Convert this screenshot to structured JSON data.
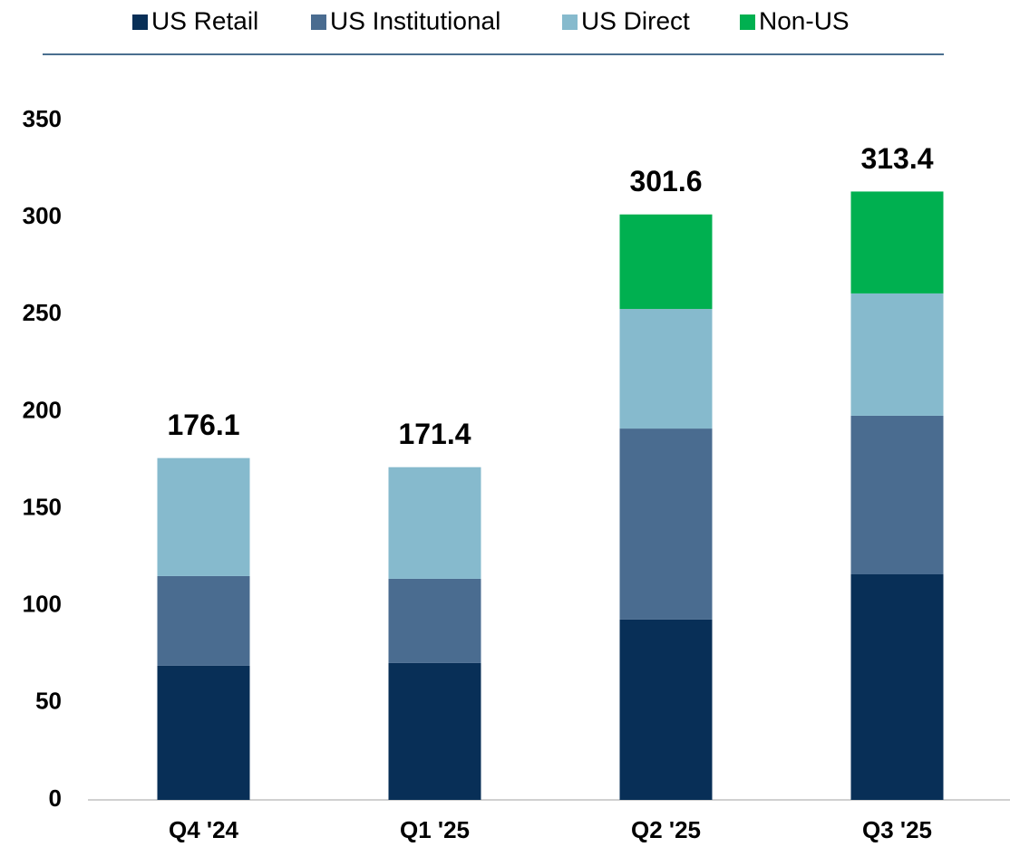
{
  "chart_data": {
    "type": "stacked_bar",
    "categories": [
      "Q4 '24",
      "Q1 '25",
      "Q2 '25",
      "Q3 '25"
    ],
    "series": [
      {
        "name": "US Retail",
        "color": "#082f57",
        "values": [
          69.1,
          70.5,
          92.9,
          116.2
        ]
      },
      {
        "name": "US Institutional",
        "color": "#4a6c90",
        "values": [
          46.2,
          43.4,
          98.4,
          81.7
        ]
      },
      {
        "name": "US Direct",
        "color": "#86bacd",
        "values": [
          60.8,
          57.5,
          61.6,
          63.0
        ]
      },
      {
        "name": "Non-US",
        "color": "#00b050",
        "values": [
          null,
          null,
          48.7,
          52.5
        ]
      }
    ],
    "totals": [
      176.1,
      171.4,
      301.6,
      313.4
    ],
    "ylim": [
      0,
      350
    ],
    "yticks": [
      0,
      50,
      100,
      150,
      200,
      250,
      300,
      350
    ],
    "legend": "top",
    "grid": false
  }
}
